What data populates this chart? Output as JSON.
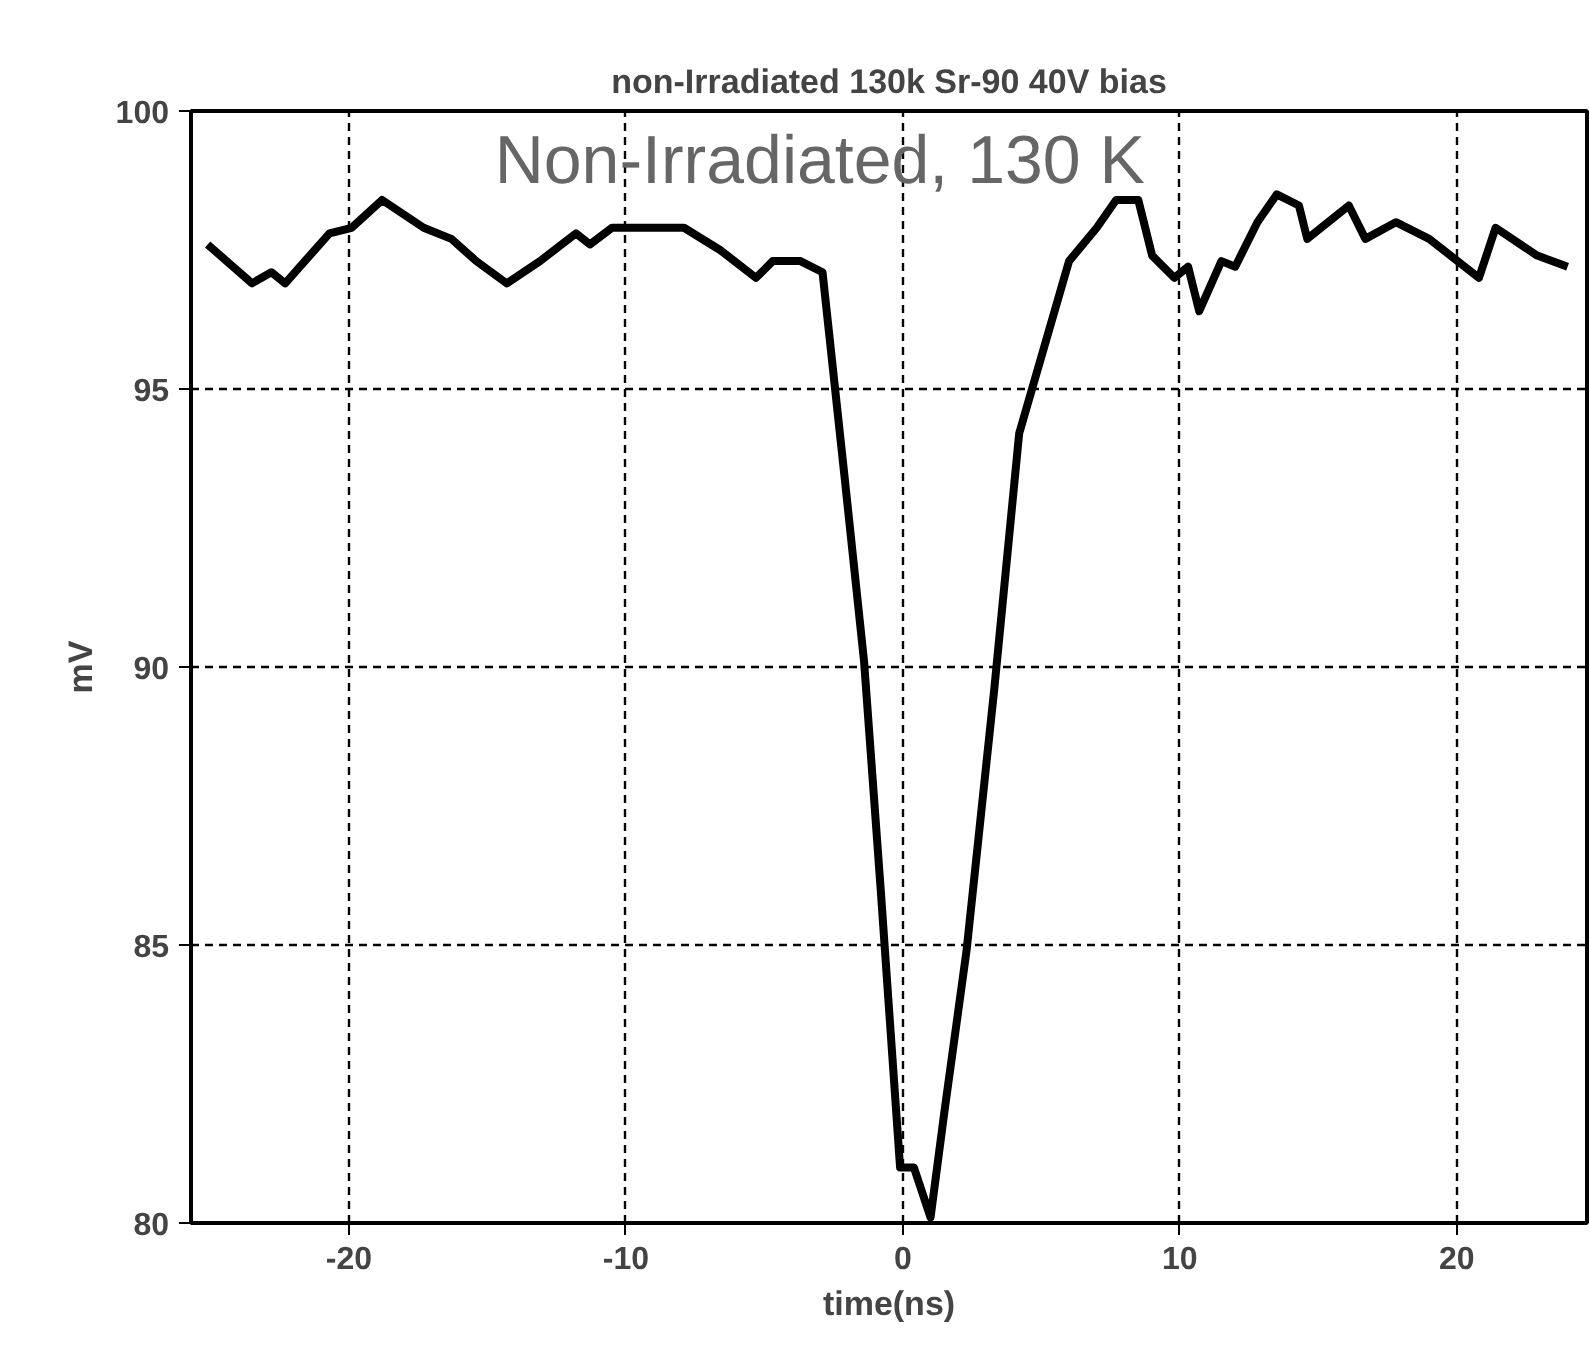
{
  "chart_data": {
    "type": "line",
    "title": "non-Irradiated 130k Sr-90 40V bias",
    "xlabel": "time(ns)",
    "ylabel": "mV",
    "annotations": [
      "Non-Irradiated, 130 K"
    ],
    "x": [
      -25.1,
      -23.5,
      -22.8,
      -22.3,
      -20.7,
      -19.9,
      -18.8,
      -17.3,
      -16.3,
      -15.4,
      -14.3,
      -13.1,
      -11.8,
      -11.3,
      -10.5,
      -7.9,
      -6.6,
      -5.3,
      -4.7,
      -3.7,
      -2.9,
      -2.1,
      -1.4,
      -0.8,
      -0.1,
      0.4,
      1.0,
      1.5,
      2.3,
      3.3,
      4.2,
      6.0,
      7.0,
      7.7,
      8.5,
      9.0,
      9.8,
      10.3,
      10.7,
      11.5,
      12.0,
      12.8,
      13.5,
      14.3,
      14.6,
      16.1,
      16.7,
      17.8,
      19.0,
      20.8,
      21.4,
      22.9,
      24.0
    ],
    "series": [
      {
        "color": "#000000",
        "values": [
          97.6,
          96.9,
          97.1,
          96.9,
          97.8,
          97.9,
          98.4,
          97.9,
          97.7,
          97.3,
          96.9,
          97.3,
          97.8,
          97.6,
          97.9,
          97.9,
          97.5,
          97.0,
          97.3,
          97.3,
          97.1,
          93.4,
          90.1,
          86.0,
          81.0,
          81.0,
          80.1,
          82.0,
          84.9,
          89.6,
          94.2,
          97.3,
          97.9,
          98.4,
          98.4,
          97.4,
          97.0,
          97.2,
          96.4,
          97.3,
          97.2,
          98.0,
          98.5,
          98.3,
          97.7,
          98.3,
          97.7,
          98.0,
          97.7,
          97.0,
          97.9,
          97.4,
          97.2
        ]
      }
    ],
    "xlim": [
      -25.7,
      24.7
    ],
    "ylim": [
      80,
      100
    ],
    "xticks": [
      -20,
      -10,
      0,
      10,
      20
    ],
    "yticks": [
      80,
      85,
      90,
      95,
      100
    ],
    "grid": true,
    "line_style": "solid"
  }
}
